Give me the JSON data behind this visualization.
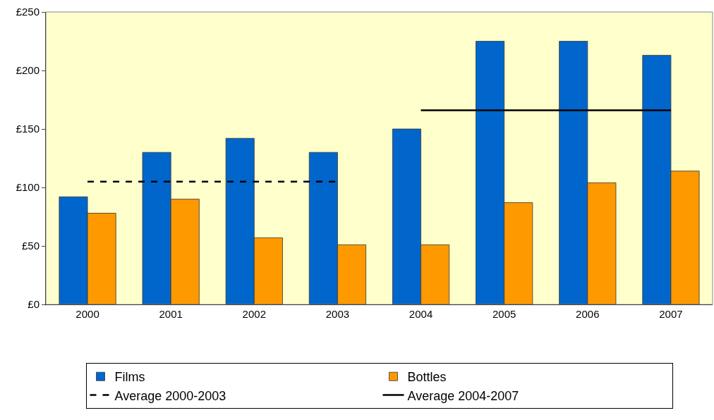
{
  "chart_data": {
    "type": "bar",
    "categories": [
      "2000",
      "2001",
      "2002",
      "2003",
      "2004",
      "2005",
      "2006",
      "2007"
    ],
    "series": [
      {
        "name": "Films",
        "color": "#0066cc",
        "values": [
          92,
          130,
          142,
          130,
          150,
          225,
          225,
          213
        ]
      },
      {
        "name": "Bottles",
        "color": "#ff9900",
        "values": [
          78,
          90,
          57,
          51,
          51,
          87,
          104,
          114
        ]
      },
      {
        "name": "Average 2000-2003",
        "type": "line",
        "color": "#000000",
        "line_style": "dashed",
        "values": [
          105,
          105,
          105,
          105,
          null,
          null,
          null,
          null
        ]
      },
      {
        "name": "Average 2004-2007",
        "type": "line",
        "color": "#000000",
        "line_style": "solid",
        "values": [
          null,
          null,
          null,
          null,
          166,
          166,
          166,
          166
        ]
      }
    ],
    "ylim": [
      0,
      250
    ],
    "yticks": [
      {
        "value": 0,
        "label": "£0"
      },
      {
        "value": 50,
        "label": "£50"
      },
      {
        "value": 100,
        "label": "£100"
      },
      {
        "value": 150,
        "label": "£150"
      },
      {
        "value": 200,
        "label": "£200"
      },
      {
        "value": 250,
        "label": "£250"
      }
    ],
    "grid": false,
    "legend": "bottom",
    "marker": "none"
  }
}
